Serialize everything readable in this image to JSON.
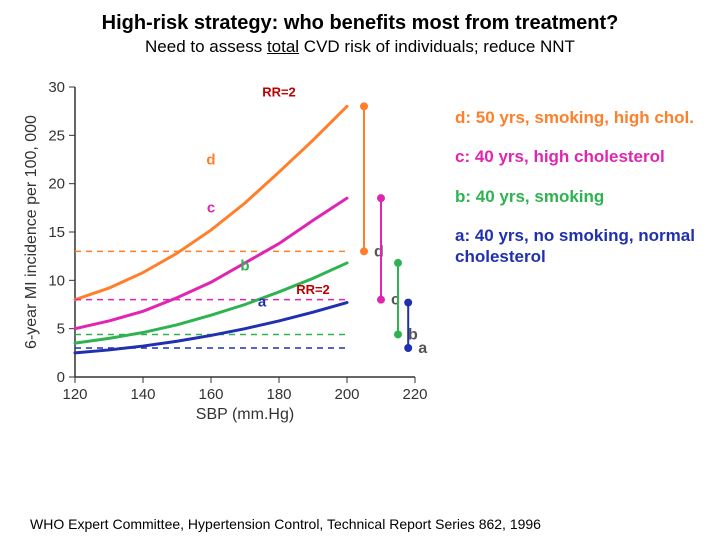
{
  "title": "High-risk strategy: who benefits most from treatment?",
  "subtitle_prefix": "Need to assess ",
  "subtitle_underline": "total",
  "subtitle_suffix": " CVD risk of individuals; reduce NNT",
  "footer": "WHO Expert Committee, Hypertension Control, Technical Report Series 862, 1996",
  "chart": {
    "type": "line",
    "xlabel": "SBP (mm.Hg)",
    "ylabel": "6-year MI incidence per 100, 000",
    "xlim": [
      120,
      220
    ],
    "ylim": [
      0,
      30
    ],
    "xticks": [
      120,
      140,
      160,
      180,
      200,
      220
    ],
    "yticks": [
      0,
      5,
      10,
      15,
      20,
      25,
      30
    ],
    "axis_color": "#333333",
    "tick_fontsize": 15,
    "label_fontsize": 16,
    "rr_label": "RR=2",
    "rr_color": "#c00000",
    "rr_bold": true,
    "series": [
      {
        "name": "d",
        "color": "#ff7f2a",
        "width": 3,
        "data": [
          [
            120,
            8
          ],
          [
            130,
            9.2
          ],
          [
            140,
            10.8
          ],
          [
            150,
            12.8
          ],
          [
            160,
            15.2
          ],
          [
            170,
            18.0
          ],
          [
            180,
            21.2
          ],
          [
            190,
            24.5
          ],
          [
            200,
            28
          ]
        ],
        "label_xy": [
          160,
          22
        ],
        "dash_y": 13,
        "marker_end_xy": [
          205,
          28
        ],
        "marker_base_xy": [
          205,
          13
        ]
      },
      {
        "name": "c",
        "color": "#e025b0",
        "width": 3,
        "data": [
          [
            120,
            5
          ],
          [
            130,
            5.8
          ],
          [
            140,
            6.8
          ],
          [
            150,
            8.2
          ],
          [
            160,
            9.8
          ],
          [
            170,
            11.8
          ],
          [
            180,
            13.8
          ],
          [
            190,
            16.2
          ],
          [
            200,
            18.5
          ]
        ],
        "label_xy": [
          160,
          17
        ],
        "dash_y": 8.0,
        "marker_end_xy": [
          210,
          18.5
        ],
        "marker_base_xy": [
          210,
          8.0
        ]
      },
      {
        "name": "b",
        "color": "#2fb351",
        "width": 3,
        "data": [
          [
            120,
            3.5
          ],
          [
            130,
            4.0
          ],
          [
            140,
            4.6
          ],
          [
            150,
            5.4
          ],
          [
            160,
            6.4
          ],
          [
            170,
            7.5
          ],
          [
            180,
            8.8
          ],
          [
            190,
            10.2
          ],
          [
            200,
            11.8
          ]
        ],
        "label_xy": [
          170,
          11
        ],
        "dash_y": 4.4,
        "marker_end_xy": [
          215,
          11.8
        ],
        "marker_base_xy": [
          215,
          4.4
        ]
      },
      {
        "name": "a",
        "color": "#2030b0",
        "width": 3,
        "data": [
          [
            120,
            2.5
          ],
          [
            130,
            2.8
          ],
          [
            140,
            3.2
          ],
          [
            150,
            3.7
          ],
          [
            160,
            4.3
          ],
          [
            170,
            5.0
          ],
          [
            180,
            5.8
          ],
          [
            190,
            6.7
          ],
          [
            200,
            7.7
          ]
        ],
        "label_xy": [
          175,
          7.3
        ],
        "dash_y": 3.0,
        "marker_end_xy": [
          218,
          7.7
        ],
        "marker_base_xy": [
          218,
          3.0
        ]
      }
    ],
    "inner_letter_color": "#555555",
    "inner_letter_fontsize": 15,
    "outer_letter_fontsize": 16,
    "dash_pattern": "6,5"
  },
  "legend": {
    "d": {
      "color": "#ff7f2a",
      "text": "d: 50 yrs, smoking, high chol."
    },
    "c": {
      "color": "#e025b0",
      "text": "c: 40 yrs, high cholesterol"
    },
    "b": {
      "color": "#2fb351",
      "text": "b: 40 yrs, smoking"
    },
    "a": {
      "color": "#2030b0",
      "text": "a: 40 yrs, no smoking, normal cholesterol"
    }
  }
}
